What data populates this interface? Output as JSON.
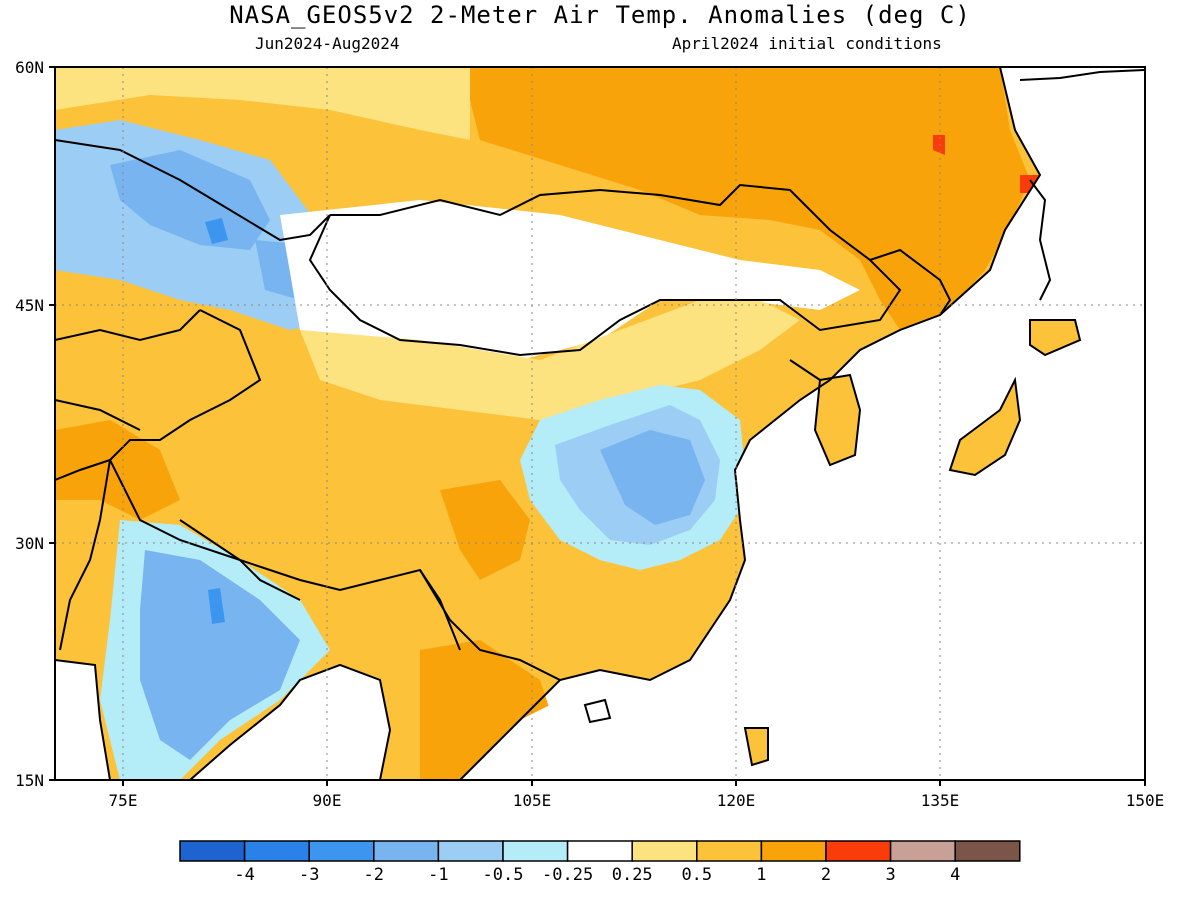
{
  "title": "NASA_GEOS5v2 2-Meter Air Temp. Anomalies (deg C)",
  "subtitle_left": "Jun2024-Aug2024",
  "subtitle_right": "April2024 initial conditions",
  "map": {
    "lon_range": [
      70,
      150
    ],
    "lat_range": [
      15,
      60
    ],
    "lat_labels": [
      "15N",
      "30N",
      "45N",
      "60N"
    ],
    "lon_labels": [
      "75E",
      "90E",
      "105E",
      "120E",
      "135E",
      "150E"
    ],
    "grid": "dotted"
  },
  "colorbar": {
    "colors": [
      "#1e64d0",
      "#2a82e8",
      "#3c96f0",
      "#78b4f0",
      "#9ccdf5",
      "#b4ecf8",
      "#ffffff",
      "#fde280",
      "#fbc23a",
      "#f9a30a",
      "#fa3c0a",
      "#c8a095",
      "#7a5548"
    ],
    "labels": [
      "-4",
      "-3",
      "-2",
      "-1",
      "-0.5",
      "-0.25",
      "0.25",
      "0.5",
      "1",
      "2",
      "3",
      "4"
    ]
  }
}
